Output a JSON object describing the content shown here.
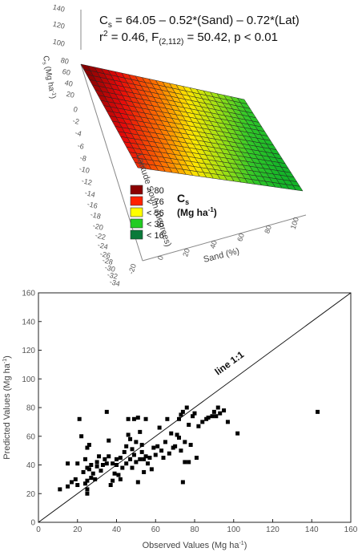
{
  "chart_data": [
    {
      "type": "surface",
      "equation": {
        "line1": "C",
        "line1_sub": "s",
        "line1_rest": " = 64.05 – 0.52*(Sand) – 0.72*(Lat)",
        "line2": "r",
        "line2_sup": "2",
        "line2_mid": " = 0.46, F",
        "line2_sub": "(2,112)",
        "line2_rest": " = 50.42, p < 0.01"
      },
      "zlabel": "C",
      "zlabel_sub": "s",
      "zlabel_rest": " (Mg ha",
      "zlabel_sup": "-1",
      "zlabel_end": ")",
      "z_ticks": [
        "140",
        "120",
        "100",
        "80",
        "60",
        "40",
        "20",
        "0",
        "-2",
        "-4",
        "-6",
        "-8",
        "-10",
        "-12",
        "-14",
        "-16",
        "-18",
        "-20",
        "-22",
        "-24",
        "-26",
        "-28",
        "-30",
        "-32",
        "-34"
      ],
      "ylabel": "Latitude South (degrees)",
      "xlabel": "Sand (%)",
      "x_ticks": [
        "-20",
        "0",
        "20",
        "40",
        "60",
        "80",
        "100"
      ],
      "legend": {
        "entries": [
          {
            "label": "> 80",
            "color": "#8b0000"
          },
          {
            "label": "< 76",
            "color": "#ff2200"
          },
          {
            "label": "< 56",
            "color": "#ffff00"
          },
          {
            "label": "< 36",
            "color": "#22cc22"
          },
          {
            "label": "< 16",
            "color": "#0a7a3a"
          }
        ],
        "title": "C",
        "title_sub": "s",
        "units": "(Mg ha",
        "units_sup": "-1",
        "units_end": ")"
      }
    },
    {
      "type": "scatter",
      "xlabel": "Observed Values (Mg ha",
      "xlabel_sup": "-1",
      "xlabel_end": ")",
      "ylabel": "Predicted Values (Mg ha",
      "ylabel_sup": "-1",
      "ylabel_end": ")",
      "xlim": [
        0,
        160
      ],
      "ylim": [
        0,
        160
      ],
      "x_ticks": [
        0,
        20,
        40,
        60,
        80,
        100,
        120,
        140,
        160
      ],
      "y_ticks": [
        0,
        20,
        40,
        60,
        80,
        100,
        120,
        140,
        160
      ],
      "reference_line_label": "line 1:1",
      "points": [
        [
          11,
          23
        ],
        [
          15,
          25
        ],
        [
          15,
          41
        ],
        [
          17,
          28
        ],
        [
          19,
          30
        ],
        [
          20,
          26
        ],
        [
          20,
          41
        ],
        [
          21,
          72
        ],
        [
          22,
          60
        ],
        [
          23,
          35
        ],
        [
          24,
          27
        ],
        [
          24,
          44
        ],
        [
          25,
          20
        ],
        [
          25,
          23
        ],
        [
          25,
          29
        ],
        [
          25,
          38
        ],
        [
          25,
          52
        ],
        [
          26,
          37
        ],
        [
          26,
          54
        ],
        [
          27,
          40
        ],
        [
          27,
          31
        ],
        [
          28,
          34
        ],
        [
          29,
          30
        ],
        [
          30,
          39
        ],
        [
          30,
          42
        ],
        [
          31,
          46
        ],
        [
          32,
          36
        ],
        [
          33,
          40
        ],
        [
          34,
          44
        ],
        [
          35,
          41
        ],
        [
          35,
          77
        ],
        [
          36,
          46
        ],
        [
          36,
          57
        ],
        [
          37,
          26
        ],
        [
          38,
          29
        ],
        [
          38,
          41
        ],
        [
          39,
          34
        ],
        [
          40,
          40
        ],
        [
          40,
          44
        ],
        [
          41,
          33
        ],
        [
          42,
          45
        ],
        [
          42,
          30
        ],
        [
          43,
          38
        ],
        [
          44,
          49
        ],
        [
          45,
          41
        ],
        [
          45,
          53
        ],
        [
          46,
          61
        ],
        [
          46,
          72
        ],
        [
          47,
          44
        ],
        [
          47,
          58
        ],
        [
          48,
          51
        ],
        [
          48,
          38
        ],
        [
          49,
          47
        ],
        [
          49,
          72
        ],
        [
          50,
          42
        ],
        [
          50,
          56
        ],
        [
          51,
          28
        ],
        [
          51,
          73
        ],
        [
          52,
          44
        ],
        [
          52,
          63
        ],
        [
          53,
          49
        ],
        [
          53,
          54
        ],
        [
          54,
          35
        ],
        [
          54,
          44
        ],
        [
          55,
          46
        ],
        [
          55,
          72
        ],
        [
          56,
          41
        ],
        [
          57,
          45
        ],
        [
          58,
          37
        ],
        [
          59,
          52
        ],
        [
          60,
          47
        ],
        [
          61,
          53
        ],
        [
          62,
          66
        ],
        [
          63,
          50
        ],
        [
          64,
          45
        ],
        [
          65,
          56
        ],
        [
          66,
          72
        ],
        [
          67,
          48
        ],
        [
          68,
          62
        ],
        [
          69,
          52
        ],
        [
          70,
          53
        ],
        [
          71,
          61
        ],
        [
          72,
          59
        ],
        [
          72,
          72
        ],
        [
          73,
          50
        ],
        [
          73,
          75
        ],
        [
          74,
          28
        ],
        [
          74,
          77
        ],
        [
          75,
          42
        ],
        [
          75,
          56
        ],
        [
          76,
          80
        ],
        [
          77,
          42
        ],
        [
          77,
          68
        ],
        [
          78,
          54
        ],
        [
          79,
          74
        ],
        [
          80,
          76
        ],
        [
          81,
          45
        ],
        [
          82,
          67
        ],
        [
          84,
          70
        ],
        [
          86,
          72
        ],
        [
          87,
          73
        ],
        [
          89,
          74
        ],
        [
          90,
          77
        ],
        [
          91,
          74
        ],
        [
          92,
          80
        ],
        [
          93,
          76
        ],
        [
          95,
          78
        ],
        [
          97,
          70
        ],
        [
          102,
          62
        ],
        [
          143,
          77
        ]
      ]
    }
  ]
}
